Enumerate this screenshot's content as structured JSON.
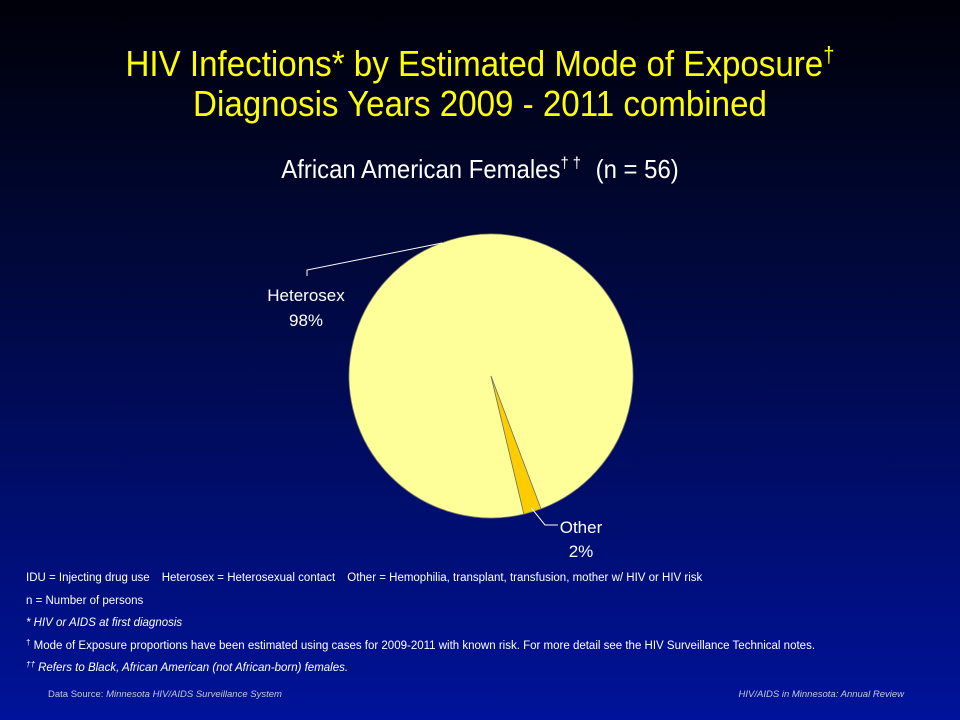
{
  "title": {
    "line1": "HIV Infections* by Estimated Mode of Exposure",
    "line1_mark": "†",
    "line2": "Diagnosis Years 2009 - 2011 combined"
  },
  "subtitle": {
    "text": "African American Females",
    "mark": "† †",
    "n": "(n = 56)"
  },
  "chart_data": {
    "type": "pie",
    "slices": [
      {
        "label": "Heterosex",
        "value": 98,
        "value_label": "98%",
        "color": "#ffff99"
      },
      {
        "label": "Other",
        "value": 2,
        "value_label": "2%",
        "color": "#ffcc00"
      }
    ]
  },
  "notes": {
    "line1": {
      "idu": "IDU = Injecting drug use",
      "hetero": "Heterosex = Heterosexual contact",
      "other": "Other = Hemophilia, transplant, transfusion, mother w/ HIV or HIV risk"
    },
    "line2": "n = Number of persons",
    "line3": "* HIV or AIDS at first diagnosis",
    "line4_mark": "†",
    "line4": " Mode of Exposure proportions have been estimated using cases for 2009-2011  with known risk. For more detail see the HIV Surveillance Technical notes.",
    "line5_mark": "††",
    "line5": " Refers to Black, African American (not African-born)  females."
  },
  "footer": {
    "source_label": "Data Source:",
    "source": " Minnesota HIV/AIDS Surveillance  System",
    "right": "HIV/AIDS in Minnesota: Annual Review"
  },
  "colors": {
    "title": "#ffff00",
    "slice_border": "#777766",
    "leader": "#ffffff"
  }
}
